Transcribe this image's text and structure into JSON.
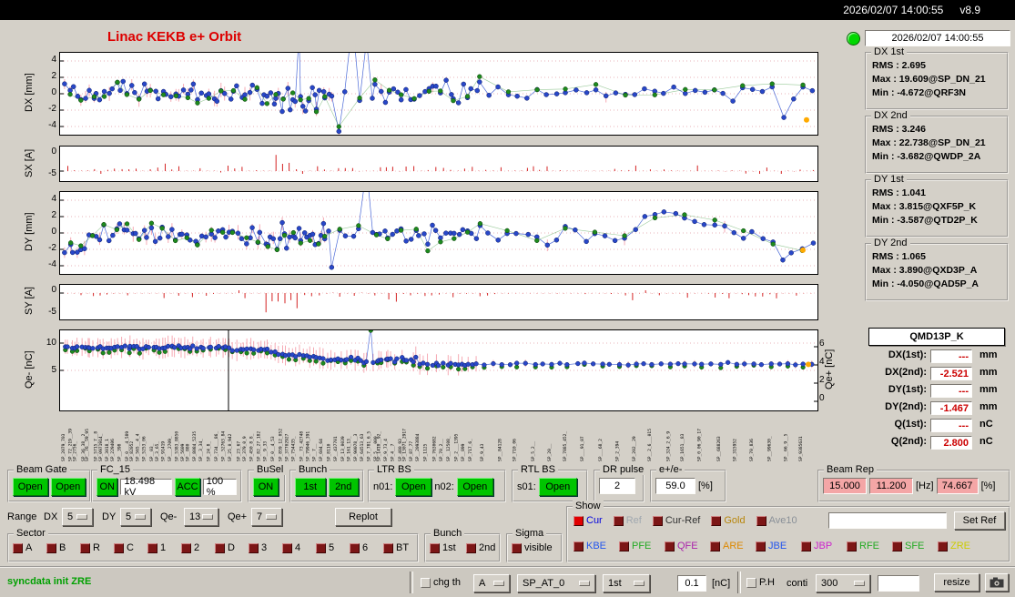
{
  "titlebar": {
    "datetime": "2026/02/07 14:00:55",
    "version": "v8.9"
  },
  "header": {
    "title": "Linac KEKB e+ Orbit",
    "timestamp": "2026/02/07 14:00:55"
  },
  "colors": {
    "accent_green": "#00c400",
    "led_green": "#00d800",
    "pink_field": "#f4a6a6",
    "value_red": "#cc0000",
    "title_red": "#dd0000",
    "point_blue": "#2847c8",
    "point_green": "#1e8a1e",
    "bar_red": "#d42424",
    "error_pink": "#f6aab4",
    "highlight_orange": "#ffaa00"
  },
  "plots": {
    "dx": {
      "ylabel": "DX [mm]",
      "ticks": [
        "4",
        "2",
        "0",
        "-2",
        "-4"
      ]
    },
    "sx": {
      "ylabel": "SX [A]",
      "ticks": [
        "0",
        "-5"
      ]
    },
    "dy": {
      "ylabel": "DY [mm]",
      "ticks": [
        "4",
        "2",
        "0",
        "-2",
        "-4"
      ]
    },
    "sy": {
      "ylabel": "SY [A]",
      "ticks": [
        "0",
        "-5"
      ]
    },
    "qe": {
      "ylabel": "Qe- [nC]",
      "ticks": [
        "10",
        "5"
      ],
      "right_label": "Qe+ [nC]",
      "right_ticks": [
        "6",
        "4",
        "2",
        "0"
      ]
    }
  },
  "stats": [
    {
      "title": "DX 1st",
      "lines": [
        "RMS : 2.695",
        "Max : 19.609@SP_DN_21",
        "Min : -4.672@QRF3N"
      ]
    },
    {
      "title": "DX 2nd",
      "lines": [
        "RMS : 3.246",
        "Max : 22.738@SP_DN_21",
        "Min : -3.682@QWDP_2A"
      ]
    },
    {
      "title": "DY 1st",
      "lines": [
        "RMS : 1.041",
        "Max : 3.815@QXF5P_K",
        "Min : -3.587@QTD2P_K"
      ]
    },
    {
      "title": "DY 2nd",
      "lines": [
        "RMS : 1.065",
        "Max : 3.890@QXD3P_A",
        "Min : -4.050@QAD5P_A"
      ]
    }
  ],
  "monitor": {
    "name": "QMD13P_K",
    "rows": [
      {
        "label": "DX(1st):",
        "value": "---",
        "unit": "mm"
      },
      {
        "label": "DX(2nd):",
        "value": "-2.521",
        "unit": "mm"
      },
      {
        "label": "DY(1st):",
        "value": "---",
        "unit": "mm"
      },
      {
        "label": "DY(2nd):",
        "value": "-1.467",
        "unit": "mm"
      },
      {
        "label": "Q(1st):",
        "value": "---",
        "unit": "nC"
      },
      {
        "label": "Q(2nd):",
        "value": "2.800",
        "unit": "nC"
      }
    ]
  },
  "beam_gate": {
    "title": "Beam Gate",
    "buttons": [
      "Open",
      "Open"
    ]
  },
  "fc15": {
    "title": "FC_15",
    "on": "ON",
    "kv": "18.498 kV",
    "acc": "ACC",
    "pct": "100 %"
  },
  "busel": {
    "title": "BuSel",
    "on": "ON"
  },
  "bunch_top": {
    "title": "Bunch",
    "b1": "1st",
    "b2": "2nd"
  },
  "ltr_bs": {
    "title": "LTR BS",
    "n01_label": "n01:",
    "n01": "Open",
    "n02_label": "n02:",
    "n02": "Open"
  },
  "rtl_bs": {
    "title": "RTL BS",
    "s01_label": "s01:",
    "s01": "Open"
  },
  "dr_pulse": {
    "title": "DR pulse",
    "value": "2"
  },
  "ratio": {
    "title": "e+/e-",
    "value": "59.0",
    "unit": "[%]"
  },
  "beam_rep": {
    "title": "Beam Rep",
    "v1": "15.000",
    "v2": "11.200",
    "hz": "[Hz]",
    "v3": "74.667",
    "pct": "[%]"
  },
  "range_row": {
    "label": "Range",
    "dx_label": "DX",
    "dx": "5",
    "dy_label": "DY",
    "dy": "5",
    "qem_label": "Qe-",
    "qem": "13",
    "qep_label": "Qe+",
    "qep": "7",
    "replot": "Replot"
  },
  "show": {
    "title": "Show",
    "row1": [
      {
        "label": "Cur",
        "color": "#0000dd",
        "box": "#e00000"
      },
      {
        "label": "Ref",
        "color": "#a0a8b0",
        "box": "#7c1616"
      },
      {
        "label": "Cur-Ref",
        "color": "#303030",
        "box": "#7c1616"
      },
      {
        "label": "Gold",
        "color": "#b8860b",
        "box": "#7c1616"
      },
      {
        "label": "Ave10",
        "color": "#8a9098",
        "box": "#7c1616"
      }
    ],
    "field_value": "",
    "set_ref": "Set Ref",
    "row2": [
      {
        "label": "KBE",
        "color": "#2255ee",
        "box": "#7c1616"
      },
      {
        "label": "PFE",
        "color": "#22aa22",
        "box": "#7c1616"
      },
      {
        "label": "QFE",
        "color": "#aa22aa",
        "box": "#7c1616"
      },
      {
        "label": "ARE",
        "color": "#dd8800",
        "box": "#7c1616"
      },
      {
        "label": "JBE",
        "color": "#2255ee",
        "box": "#7c1616"
      },
      {
        "label": "JBP",
        "color": "#cc22cc",
        "box": "#7c1616"
      },
      {
        "label": "RFE",
        "color": "#22aa22",
        "box": "#7c1616"
      },
      {
        "label": "SFE",
        "color": "#22aa22",
        "box": "#7c1616"
      },
      {
        "label": "ZRE",
        "color": "#cccc00",
        "box": "#7c1616"
      }
    ]
  },
  "sector": {
    "title": "Sector",
    "items": [
      "A",
      "B",
      "R",
      "C",
      "1",
      "2",
      "D",
      "3",
      "4",
      "5",
      "6",
      "BT"
    ]
  },
  "bunch_bottom": {
    "title": "Bunch",
    "items": [
      "1st",
      "2nd"
    ]
  },
  "sigma": {
    "title": "Sigma",
    "items": [
      "visible"
    ]
  },
  "statusbar": {
    "message": "syncdata init ZRE",
    "chg_th": "chg th",
    "sel_a": "A",
    "sel_sp": "SP_AT_0",
    "sel_1st": "1st",
    "threshold": "0.1",
    "unit": "[nC]",
    "ph": "P.H",
    "conti": "conti",
    "sel_300": "300",
    "blank_field": "",
    "resize": "resize"
  }
}
